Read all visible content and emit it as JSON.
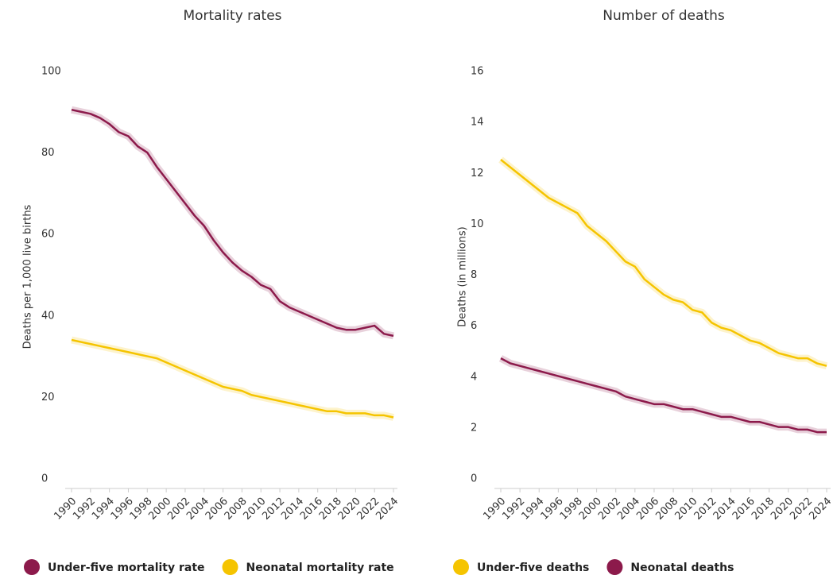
{
  "chart_data": [
    {
      "type": "line",
      "title": "Mortality rates",
      "y_label": "Deaths per 1,000 live births",
      "x": [
        1990,
        1991,
        1992,
        1993,
        1994,
        1995,
        1996,
        1997,
        1998,
        1999,
        2000,
        2001,
        2002,
        2003,
        2004,
        2005,
        2006,
        2007,
        2008,
        2009,
        2010,
        2011,
        2012,
        2013,
        2014,
        2015,
        2016,
        2017,
        2018,
        2019,
        2020,
        2021,
        2022,
        2023,
        2024
      ],
      "xlim": [
        1990,
        2024
      ],
      "xticks": [
        1990,
        1992,
        1994,
        1996,
        1998,
        2000,
        2002,
        2004,
        2006,
        2008,
        2010,
        2012,
        2014,
        2016,
        2018,
        2020,
        2022,
        2024
      ],
      "ylim": [
        0,
        100
      ],
      "yticks": [
        0,
        20,
        40,
        60,
        80,
        100
      ],
      "series": [
        {
          "name": "Under-five mortality rate",
          "color": "#8c1a4b",
          "values": [
            91,
            90.5,
            90,
            89,
            87.5,
            85.5,
            84.5,
            82,
            80.5,
            77,
            74,
            71,
            68,
            65,
            62.5,
            59,
            56,
            53.5,
            51.5,
            50,
            48,
            47,
            44,
            42.5,
            41.5,
            40.5,
            39.5,
            38.5,
            37.5,
            37,
            37,
            37.5,
            38,
            36,
            35.5
          ]
        },
        {
          "name": "Neonatal mortality rate",
          "color": "#f5c400",
          "values": [
            34.5,
            34,
            33.5,
            33,
            32.5,
            32,
            31.5,
            31,
            30.5,
            30,
            29,
            28,
            27,
            26,
            25,
            24,
            23,
            22.5,
            22,
            21,
            20.5,
            20,
            19.5,
            19,
            18.5,
            18,
            17.5,
            17,
            17,
            16.5,
            16.5,
            16.5,
            16,
            16,
            15.5
          ]
        }
      ]
    },
    {
      "type": "line",
      "title": "Number of deaths",
      "y_label": "Deaths (in millions)",
      "x": [
        1990,
        1991,
        1992,
        1993,
        1994,
        1995,
        1996,
        1997,
        1998,
        1999,
        2000,
        2001,
        2002,
        2003,
        2004,
        2005,
        2006,
        2007,
        2008,
        2009,
        2010,
        2011,
        2012,
        2013,
        2014,
        2015,
        2016,
        2017,
        2018,
        2019,
        2020,
        2021,
        2022,
        2023,
        2024
      ],
      "xlim": [
        1990,
        2024
      ],
      "xticks": [
        1990,
        1992,
        1994,
        1996,
        1998,
        2000,
        2002,
        2004,
        2006,
        2008,
        2010,
        2012,
        2014,
        2016,
        2018,
        2020,
        2022,
        2024
      ],
      "ylim": [
        0,
        16
      ],
      "yticks": [
        0,
        2,
        4,
        6,
        8,
        10,
        12,
        14,
        16
      ],
      "series": [
        {
          "name": "Under-five deaths",
          "color": "#f5c400",
          "values": [
            12.6,
            12.3,
            12.0,
            11.7,
            11.4,
            11.1,
            10.9,
            10.7,
            10.5,
            10.0,
            9.7,
            9.4,
            9.0,
            8.6,
            8.4,
            7.9,
            7.6,
            7.3,
            7.1,
            7.0,
            6.7,
            6.6,
            6.2,
            6.0,
            5.9,
            5.7,
            5.5,
            5.4,
            5.2,
            5.0,
            4.9,
            4.8,
            4.8,
            4.6,
            4.5
          ]
        },
        {
          "name": "Neonatal deaths",
          "color": "#8c1a4b",
          "values": [
            4.8,
            4.6,
            4.5,
            4.4,
            4.3,
            4.2,
            4.1,
            4.0,
            3.9,
            3.8,
            3.7,
            3.6,
            3.5,
            3.3,
            3.2,
            3.1,
            3.0,
            3.0,
            2.9,
            2.8,
            2.8,
            2.7,
            2.6,
            2.5,
            2.5,
            2.4,
            2.3,
            2.3,
            2.2,
            2.1,
            2.1,
            2.0,
            2.0,
            1.9,
            1.9
          ]
        }
      ]
    }
  ]
}
